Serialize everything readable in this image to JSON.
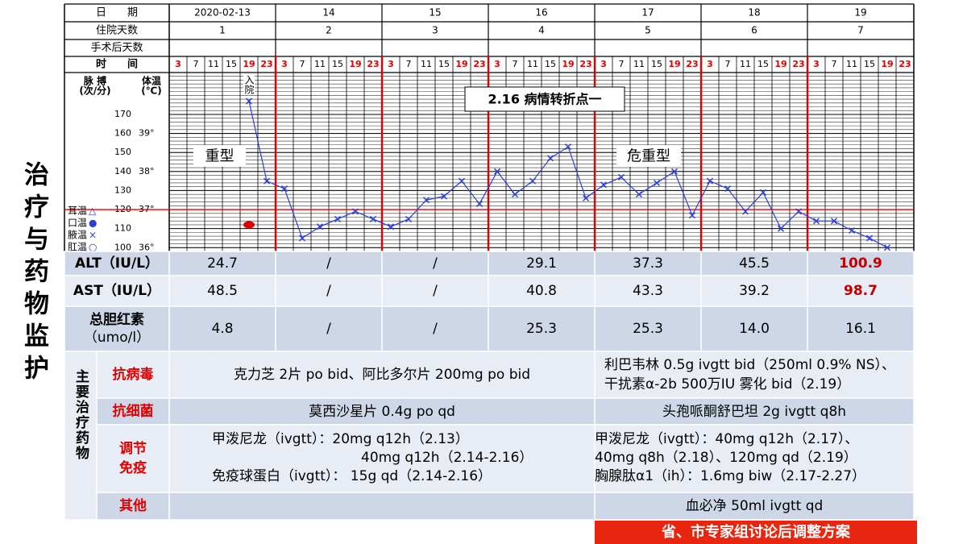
{
  "title": "治疗与药物监护",
  "header": {
    "rows": [
      {
        "label": "日　　期",
        "cells": [
          "2020-02-13",
          "14",
          "15",
          "16",
          "17",
          "18",
          "19"
        ]
      },
      {
        "label": "住院天数",
        "cells": [
          "1",
          "2",
          "3",
          "4",
          "5",
          "6",
          "7"
        ]
      },
      {
        "label": "手术后天数"
      }
    ]
  },
  "chart_data": {
    "type": "line",
    "x_label": "时　　间",
    "y_label": [
      "脉 搏",
      "(次/分)"
    ],
    "y2_label": [
      "体温",
      "(℃)"
    ],
    "categories": [
      "3",
      "7",
      "11",
      "15",
      "19",
      "23",
      "3",
      "7",
      "11",
      "15",
      "19",
      "23",
      "3",
      "7",
      "11",
      "15",
      "19",
      "23",
      "3",
      "7",
      "11",
      "15",
      "19",
      "23",
      "3",
      "7",
      "11",
      "15",
      "19",
      "23",
      "3",
      "7",
      "11",
      "15",
      "19",
      "23",
      "3",
      "7",
      "11",
      "15",
      "19",
      "23"
    ],
    "series": [
      {
        "name": "腋温",
        "color": "#2a3fd6",
        "values": [
          null,
          null,
          null,
          null,
          177,
          135,
          131,
          105,
          111,
          115,
          119,
          115,
          111,
          115,
          125,
          127,
          135,
          123,
          140,
          128,
          135,
          147,
          153,
          126,
          133,
          137,
          128,
          134,
          140,
          117,
          135,
          131,
          119,
          129,
          110,
          119,
          114,
          114,
          109,
          105,
          100,
          null
        ]
      },
      {
        "name": "口温",
        "color": "#e00000",
        "axis": "y2",
        "values": [
          null,
          null,
          null,
          null,
          36.6,
          null,
          null,
          null,
          null,
          null,
          null,
          null,
          null,
          null,
          null,
          null,
          null,
          null,
          null,
          null,
          null,
          null,
          null,
          null,
          null,
          null,
          null,
          null,
          null,
          null,
          null,
          null,
          null,
          null,
          null,
          null,
          null,
          null,
          null,
          null,
          null,
          null
        ]
      }
    ],
    "legend_entries": [
      {
        "name": "耳温",
        "symbol": "△"
      },
      {
        "name": "口温",
        "symbol": "●"
      },
      {
        "name": "腋温",
        "symbol": "×"
      },
      {
        "name": "肛温",
        "symbol": "○"
      }
    ],
    "ylim": [
      98,
      192
    ],
    "yticks": [
      100,
      110,
      120,
      130,
      140,
      150,
      160,
      170
    ],
    "y2lim": [
      35.9,
      40.6
    ],
    "y2ticks": [
      {
        "value": 36,
        "label": "36°"
      },
      {
        "value": 37,
        "label": "37°"
      },
      {
        "value": 38,
        "label": "38°"
      },
      {
        "value": 39,
        "label": "39°"
      }
    ],
    "reference_line_y2": 37,
    "annotations": [
      "入院",
      "重型",
      "危重型",
      "2.16  病情转折点一"
    ]
  },
  "labs": {
    "rows": [
      {
        "label": [
          "ALT（IU/L）"
        ],
        "values": [
          "24.7",
          "/",
          "/",
          "29.1",
          "37.3",
          "45.5",
          "100.9"
        ],
        "alert_index": 6
      },
      {
        "label": [
          "AST（IU/L）"
        ],
        "values": [
          "48.5",
          "/",
          "/",
          "40.8",
          "43.3",
          "39.2",
          "98.7"
        ],
        "alert_index": 6
      },
      {
        "label": [
          "总胆红素",
          "（umo/l）"
        ],
        "values": [
          "4.8",
          "/",
          "/",
          "25.3",
          "25.3",
          "14.0",
          "16.1"
        ]
      }
    ]
  },
  "drugs": {
    "section_label": "主要治疗药物",
    "rows": [
      {
        "category": [
          "抗病毒"
        ],
        "left": [
          "克力芝 2片 po bid、阿比多尔片  200mg po bid"
        ],
        "right": [
          "利巴韦林 0.5g ivgtt bid（250ml 0.9% NS）、",
          "干扰素α-2b 500万IU 雾化 bid（2.19）"
        ]
      },
      {
        "category": [
          "抗细菌"
        ],
        "left": [
          "莫西沙星片 0.4g po qd"
        ],
        "right": [
          "头孢哌酮舒巴坦 2g ivgtt q8h"
        ]
      },
      {
        "category": [
          "调节",
          "免疫"
        ],
        "left": [
          "甲泼尼龙（ivgtt）：20mg  q12h（2.13）",
          "40mg q12h（2.14-2.16）",
          "免疫球蛋白（ivgtt）： 15g qd（2.14-2.16）"
        ],
        "right": [
          "甲泼尼龙（ivgtt）：40mg  q12h（2.17）、",
          "40mg q8h（2.18）、120mg qd（2.19）",
          "胸腺肽α1（ih）：1.6mg biw（2.17-2.27）"
        ]
      },
      {
        "category": [
          "其他"
        ],
        "right": [
          "血必净 50ml ivgtt qd"
        ]
      }
    ]
  },
  "footer_note": "省、市专家组讨论后调整方案"
}
